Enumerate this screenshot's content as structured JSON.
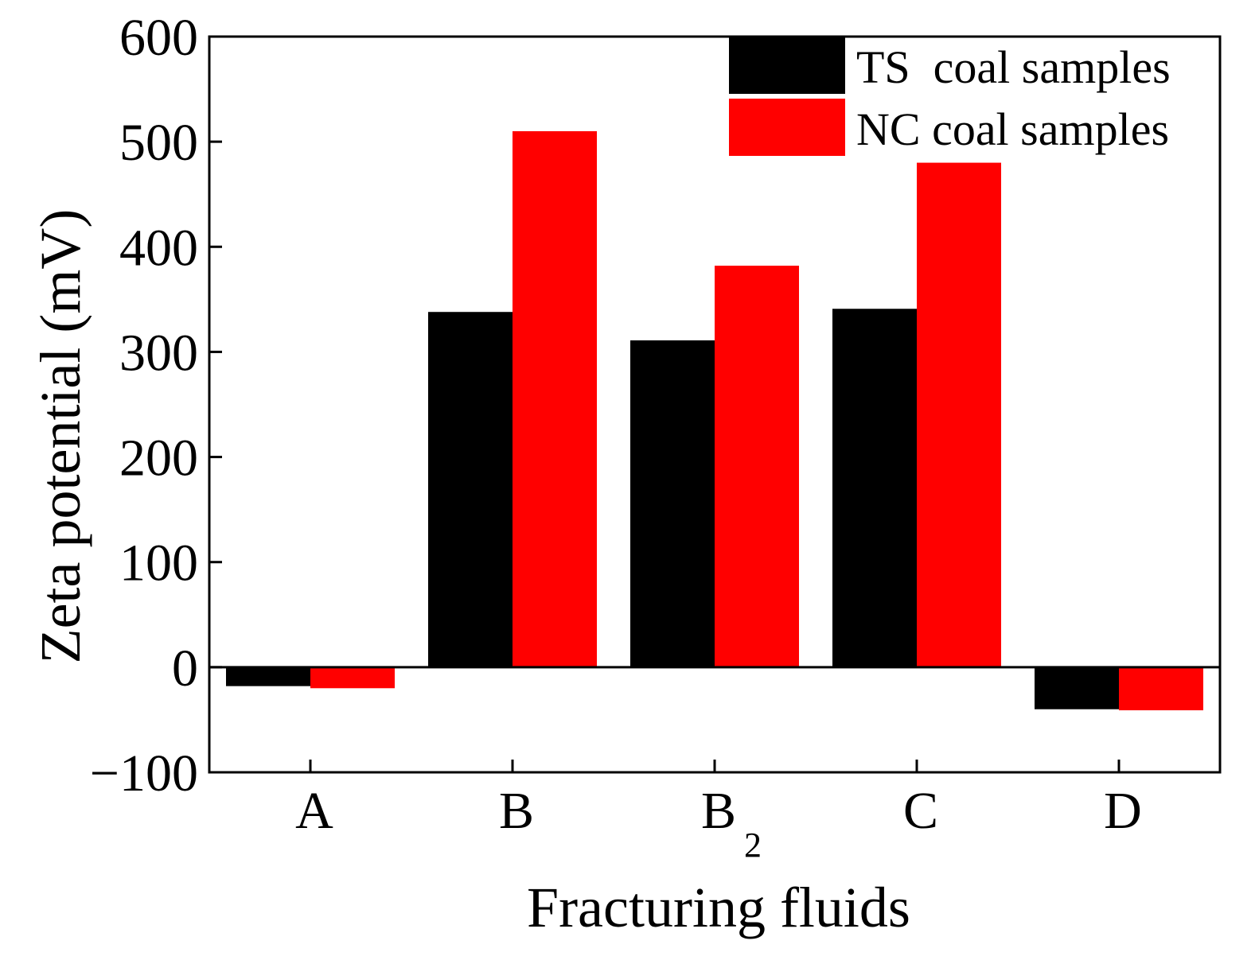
{
  "chart_data": {
    "type": "bar",
    "categories": [
      "A",
      "B",
      "B",
      "C",
      "D"
    ],
    "category_subscripts": [
      "",
      "",
      "2",
      "",
      ""
    ],
    "series": [
      {
        "name": "TS  coal samples",
        "color": "#000000",
        "values": [
          -18,
          338,
          311,
          341,
          -40
        ]
      },
      {
        "name": "NC coal samples",
        "color": "#ff0000",
        "values": [
          -20,
          510,
          382,
          480,
          -41
        ]
      }
    ],
    "xlabel": "Fracturing fluids",
    "ylabel": "Zeta potential (mV)",
    "ylim": [
      -100,
      600
    ],
    "yticks": [
      {
        "value": 600,
        "label": "600"
      },
      {
        "value": 500,
        "label": "500"
      },
      {
        "value": 400,
        "label": "400"
      },
      {
        "value": 300,
        "label": "300"
      },
      {
        "value": 200,
        "label": "200"
      },
      {
        "value": 100,
        "label": "100"
      },
      {
        "value": 0,
        "label": "0"
      },
      {
        "value": -100,
        "label": "−100"
      }
    ],
    "legend_position": "top-right",
    "grid": false
  }
}
